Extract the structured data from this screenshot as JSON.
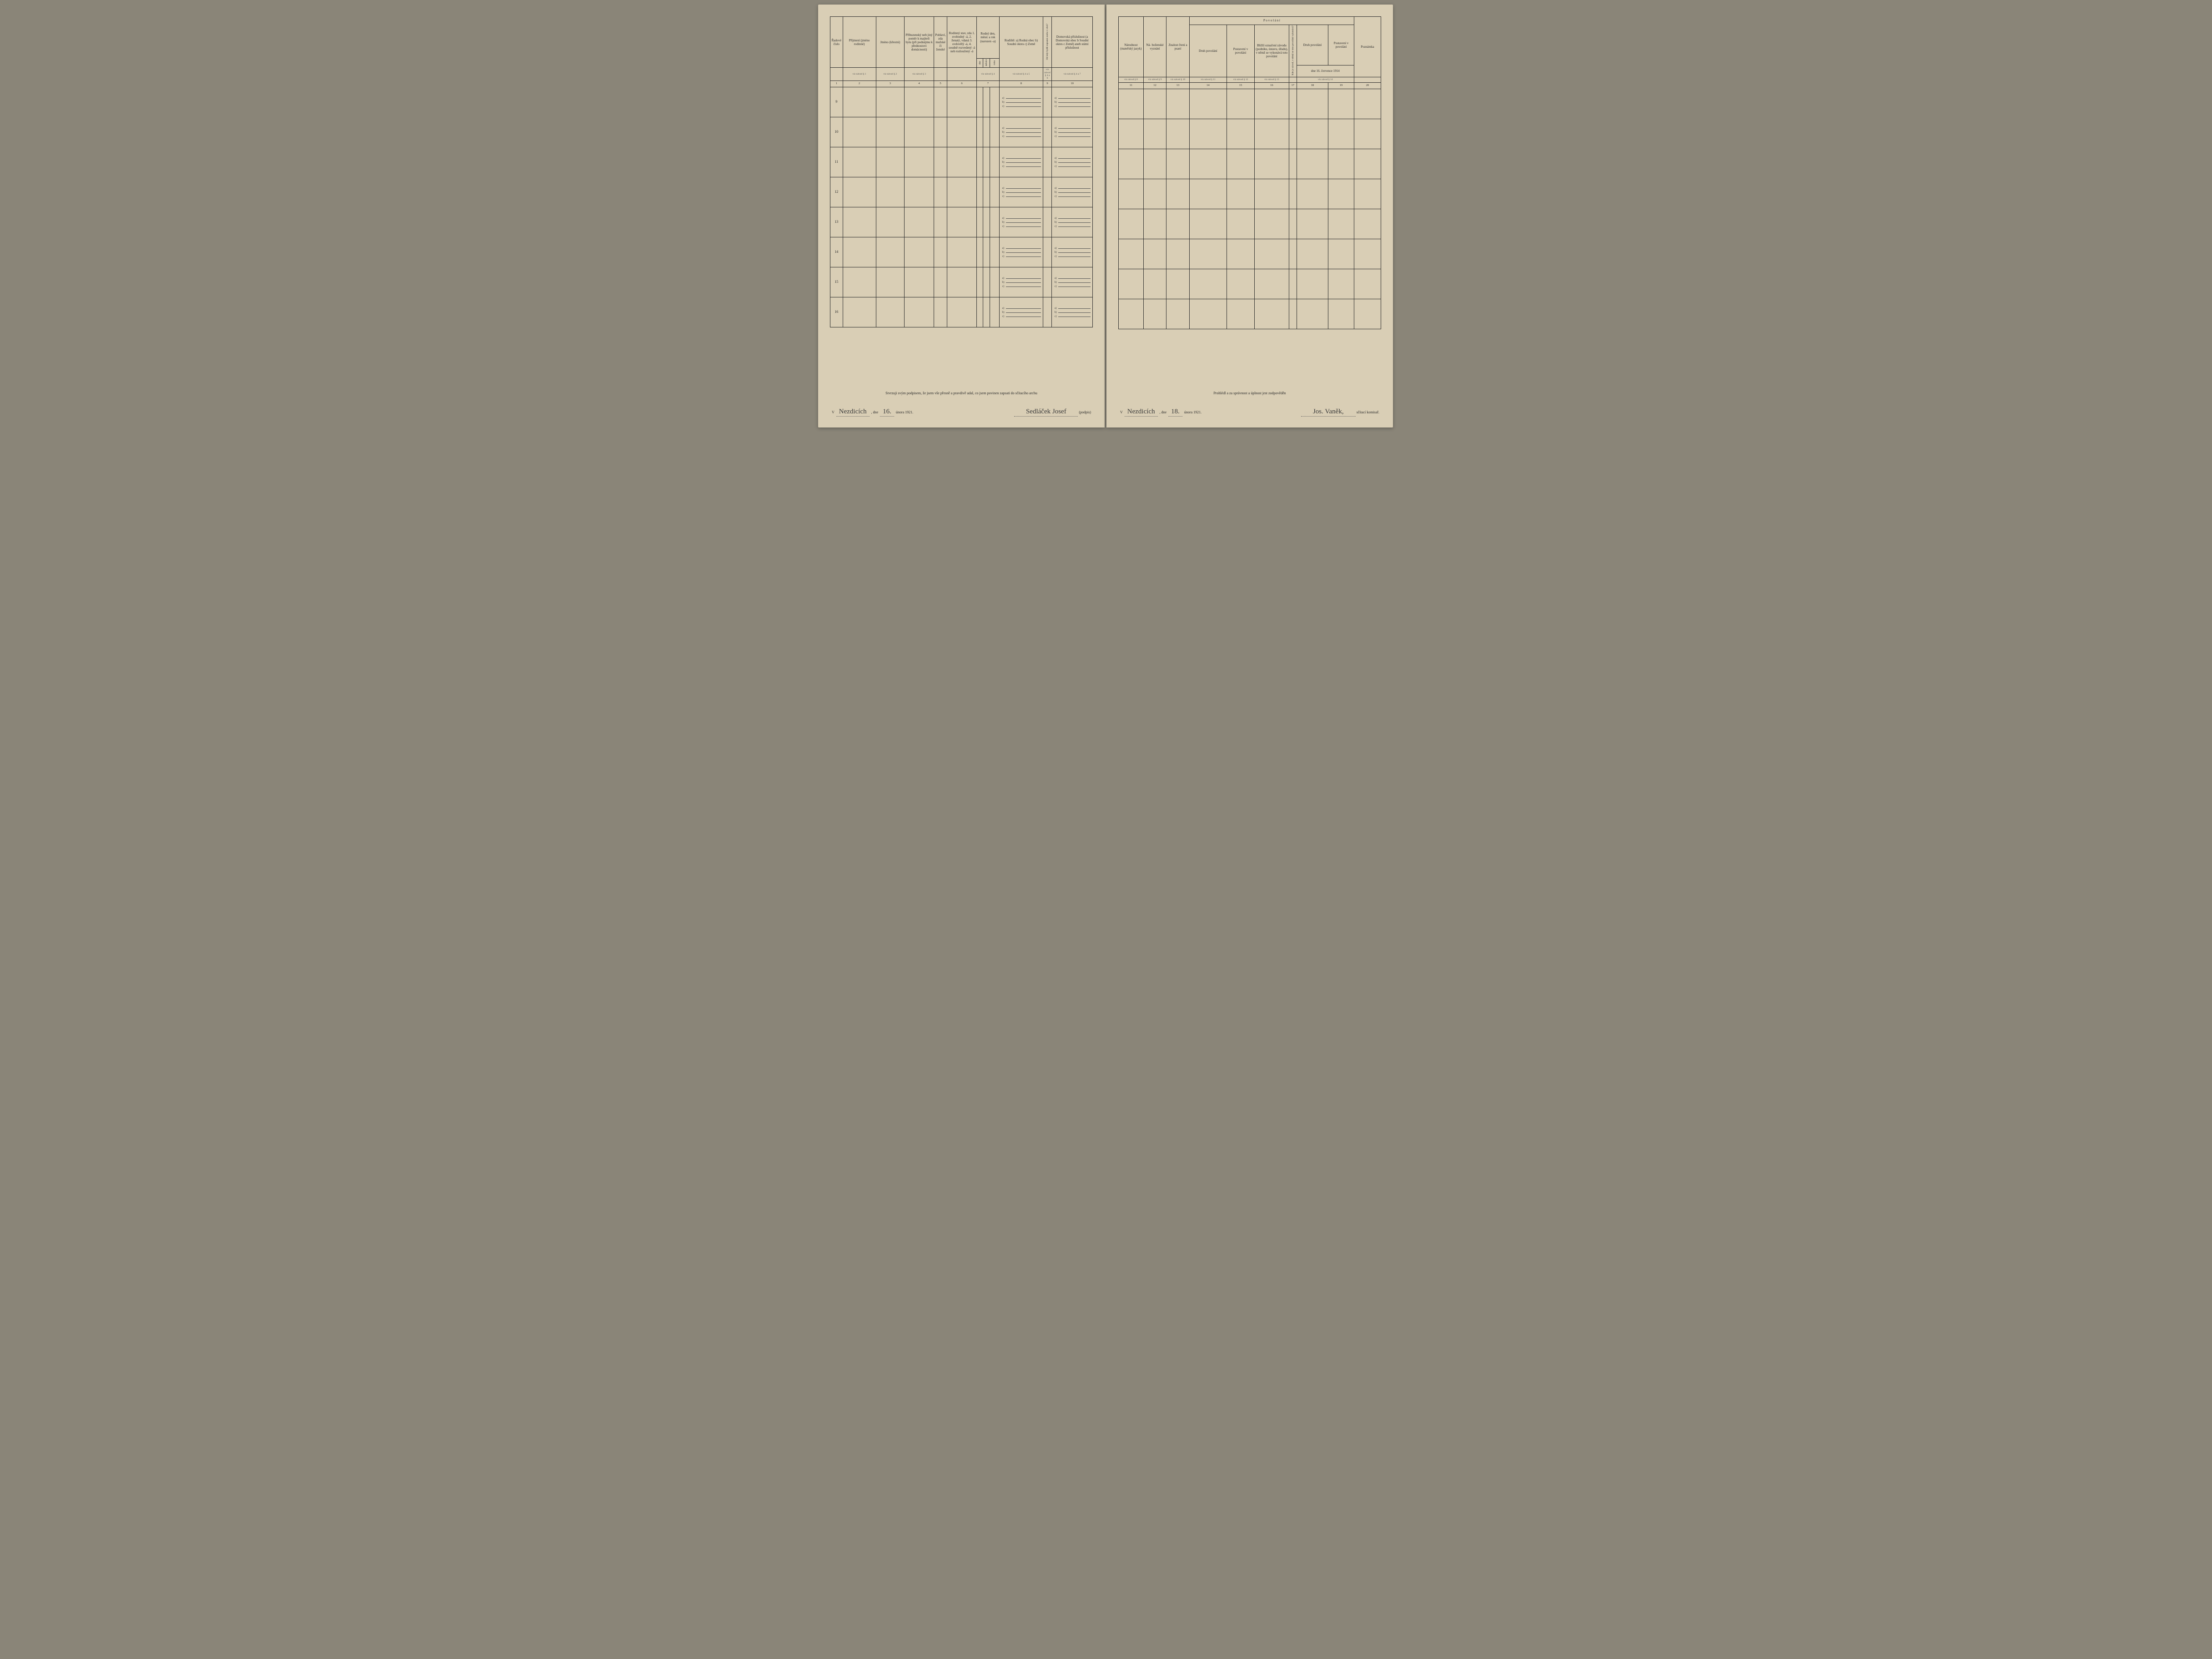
{
  "document": {
    "type": "census-form",
    "language": "cs",
    "background_color": "#d9ceb5",
    "ink_color": "#2a2a2a"
  },
  "left": {
    "headers": {
      "c1": "Řadové číslo",
      "c2": "Příjmení\n(jméno rodinné)",
      "c3": "Jméno\n(křestní)",
      "c4": "Příbuzenský neb jiný poměr k majiteli bytu (při podnájmu k přednostovi domácnosti)",
      "c5": "Pohlaví, zda mužské či ženské",
      "c6": "Rodinný stav, zda 1. svobodný -á, 2. ženatý, vdaná 3. ovdovělý -á, 4. soudně rozvedený -á neb rozloučený -á",
      "c7": "Rodný den, měsíc a rok (narozen -a)",
      "c7a": "dne",
      "c7b": "měsíce",
      "c7c": "roku",
      "c8": "Rodiště:\na) Rodná obec\nb) Soudní okres\nc) Země",
      "c9": "Od kdy bydlí zapsaná osoba v obci?",
      "c10": "Domovská příslušnost (a Domovská obec b Soudní okres c Země) aneb státní příslušnost"
    },
    "refs": {
      "c2": "viz návod § 1",
      "c3": "viz návod § 2",
      "c4": "viz návod § 3",
      "c7": "viz návod § 4",
      "c8": "viz návod § 4 a 5",
      "c9": "viz návod § 4 a 6",
      "c10": "viz návod § 4 a 7"
    },
    "colnums": [
      "1",
      "2",
      "3",
      "4",
      "5",
      "6",
      "7",
      "8",
      "9",
      "10"
    ],
    "rows": [
      "9",
      "10",
      "11",
      "12",
      "13",
      "14",
      "15",
      "16"
    ],
    "sublabels": [
      "a)",
      "b)",
      "c)"
    ],
    "footer": {
      "statement": "Stvrzuji svým podpisem, že jsem vše přesně a pravdivě udal, co jsem povinen zapsati do sčítacího archu",
      "place_prefix": "V",
      "place_value": "Nezdicích",
      "date_prefix": ", dne",
      "day_value": "16.",
      "month_year": "února 1921.",
      "signature": "Sedláček Josef",
      "signature_caption": "(podpis)"
    }
  },
  "right": {
    "section_title": "P o v o l á n í",
    "headers": {
      "c11": "Národnost (mateřský jazyk)",
      "c12": "Ná-\nboženské vyznání",
      "c13": "Znalost čtení a psaní",
      "c14": "Druh povolání",
      "c15": "Postavení v povolání",
      "c16": "Bližší označení závodu (podniku, ústavu, úřadu), v němž se vykonává toto povolání",
      "c17v": "Kde je závod, v němž se toto povolání vykonává?",
      "c18": "Druh povolání",
      "c19": "Postavení v povolání",
      "c1819_sub": "dne 16. července 1914",
      "c20": "Poznámka"
    },
    "refs": {
      "c11": "viz návod § 8",
      "c12": "viz návod § 9",
      "c13": "viz návod § 10",
      "c14": "viz návod § 11",
      "c15": "viz návod § 12",
      "c16": "viz návod § 13",
      "c1819": "viz návod § 14"
    },
    "colnums": [
      "11",
      "12",
      "13",
      "14",
      "15",
      "16",
      "17",
      "18",
      "19",
      "20"
    ],
    "rows_count": 8,
    "footer": {
      "statement": "Prohlédl a za správnost a úplnost jest zodpověděn",
      "place_prefix": "V",
      "place_value": "Nezdicích",
      "date_prefix": ", dne",
      "day_value": "18.",
      "month_year": "února 1921.",
      "signature": "Jos. Vaněk,",
      "signature_caption": "sčítací komisař."
    }
  }
}
